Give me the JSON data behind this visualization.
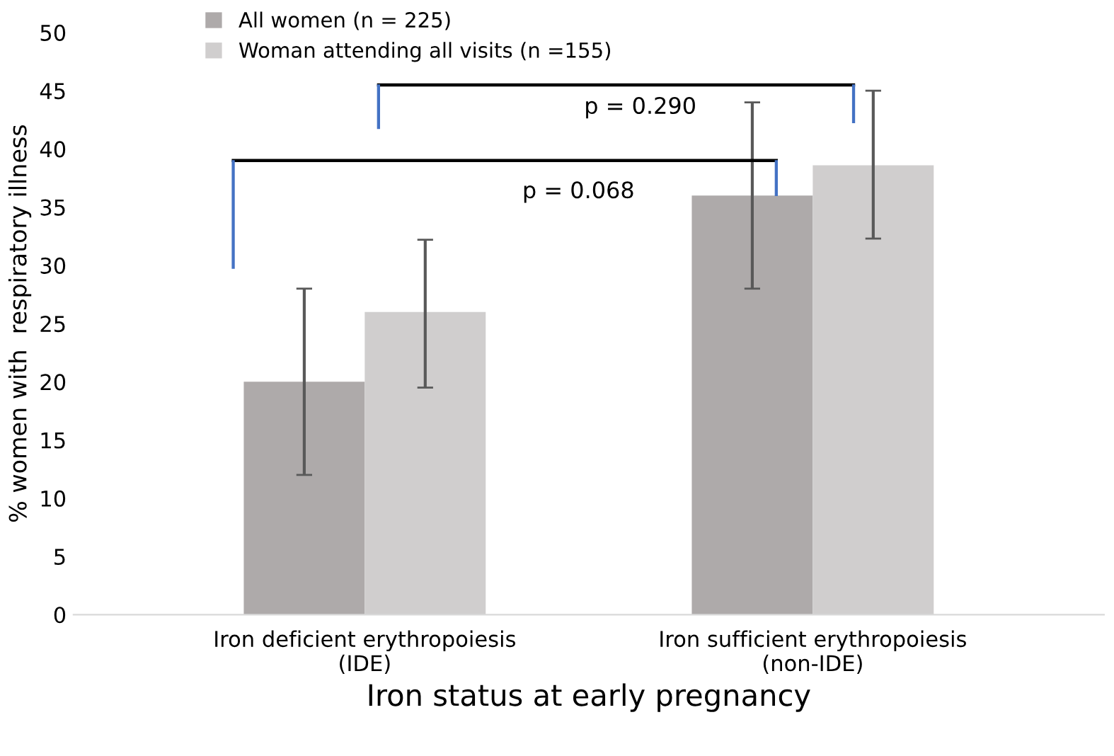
{
  "chart_data": {
    "type": "bar",
    "categories": [
      "Iron deficient erythropoiesis\n(IDE)",
      "Iron sufficient erythropoiesis\n(non-IDE)"
    ],
    "series": [
      {
        "name": "All women (n = 225)",
        "color": "#aeaaaa",
        "values": [
          20,
          36
        ],
        "errors": [
          [
            12,
            28
          ],
          [
            28,
            44
          ]
        ]
      },
      {
        "name": "Woman attending all visits (n =155)",
        "color": "#d0cece",
        "values": [
          26,
          38.6
        ],
        "errors": [
          [
            19.5,
            32.2
          ],
          [
            32.3,
            45
          ]
        ]
      }
    ],
    "xlabel": "Iron status at early pregnancy",
    "ylabel": "% women with  respiratory illness",
    "ylim": [
      0,
      50
    ],
    "yticks": [
      0,
      5,
      10,
      15,
      20,
      25,
      30,
      35,
      40,
      45,
      50
    ],
    "annotations": [
      "p = 0.068",
      "p = 0.290"
    ],
    "legend": "top left",
    "grid": false
  }
}
